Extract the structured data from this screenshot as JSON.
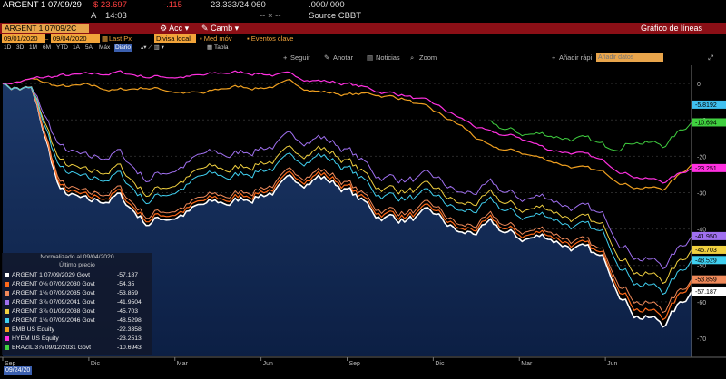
{
  "header": {
    "security": "ARGENT 1 07/09/29",
    "price": "$ 23.697",
    "change": "-.115",
    "bid_ask": "23.333/24.060",
    "volume": ".000/.000",
    "arrow": "A",
    "time": "14:03",
    "dash": "-- × --",
    "source": "Source CBBT"
  },
  "toolbar": {
    "security_box": "ARGENT 1 07/09/2C",
    "actions_label": "Acc",
    "actions_icon": "gear-icon",
    "camb_label": "Camb",
    "camb_icon": "pencil-icon",
    "chart_type": "Gráfico de líneas"
  },
  "controls": {
    "start_date": "09/01/2020",
    "end_date": "09/04/2020",
    "field": "Last Px",
    "currency": "Divisa local",
    "moving_avg": "Med móv",
    "key_events": "Eventos clave"
  },
  "periods": {
    "items": [
      "1D",
      "3D",
      "1M",
      "6M",
      "YTD",
      "1A",
      "5A",
      "Máx"
    ],
    "frequency": "Diario",
    "table": "Tabla"
  },
  "tools": {
    "follow": "Seguir",
    "annotate": "Anotar",
    "news": "Noticias",
    "zoom": "Zoom",
    "quick_add": "Añadir rápi",
    "add_data_placeholder": "Añadir datos"
  },
  "legend": {
    "title": "Normalizado al 09/04/2020",
    "subtitle": "Último precio",
    "entries": [
      {
        "name": "ARGENT 1 07/09/2029 Govt",
        "value": "-57.187",
        "color": "#ffffff"
      },
      {
        "name": "ARGENT 0⅛ 07/09/2030 Govt",
        "value": "-54.35",
        "color": "#ff6a1a"
      },
      {
        "name": "ARGENT 1⅛ 07/09/2035 Govt",
        "value": "-53.859",
        "color": "#f08a5a"
      },
      {
        "name": "ARGENT 3⅞ 07/09/2041 Govt",
        "value": "-41.9504",
        "color": "#a070f0"
      },
      {
        "name": "ARGENT 3⅞ 01/09/2038 Govt",
        "value": "-45.703",
        "color": "#f0d040"
      },
      {
        "name": "ARGENT 1⅛ 07/09/2046 Govt",
        "value": "-48.5298",
        "color": "#40d0f0"
      },
      {
        "name": "EMB US Equity",
        "value": "-22.3358",
        "color": "#f0a020"
      },
      {
        "name": "HYEM US Equity",
        "value": "-23.2513",
        "color": "#ff30e0"
      },
      {
        "name": "BRAZIL 3⅞ 09/12/2031 Govt",
        "value": "-10.6943",
        "color": "#40d040"
      }
    ]
  },
  "right_labels": [
    {
      "text": "-5.8192",
      "color": "#40c0f0"
    },
    {
      "text": "-10.694",
      "color": "#40d040"
    },
    {
      "text": "-23.251",
      "color": "#ff30e0"
    },
    {
      "text": "-41.950",
      "color": "#a070f0"
    },
    {
      "text": "-45.703",
      "color": "#f0d040"
    },
    {
      "text": "-48.529",
      "color": "#40d0f0"
    },
    {
      "text": "-53.859",
      "color": "#f08a5a"
    },
    {
      "text": "-57.187",
      "color": "#ffffff"
    }
  ],
  "date_box": "09/24/20",
  "chart_data": {
    "type": "line",
    "ylim": [
      -75,
      5
    ],
    "yticks": [
      0,
      -10,
      -20,
      -30,
      -40,
      -50,
      -60,
      -70
    ],
    "ytick_labels": [
      "0",
      "-10",
      "-20",
      "-30",
      "-40",
      "-50",
      "-60",
      "-70"
    ],
    "x_labels": [
      "Sep",
      "Dic",
      "Mar",
      "Jun",
      "Sep",
      "Dic",
      "Mar",
      "Jun"
    ],
    "year_labels": [
      "2020",
      "2021",
      "2022"
    ],
    "x_anchor_months": [
      0,
      3,
      6,
      9,
      12,
      15,
      18,
      21,
      24
    ],
    "series": [
      {
        "name": "ARGENT 1 07/09/2029 Govt",
        "color": "#ffffff",
        "width": 1.6,
        "values": [
          0,
          -2,
          -30,
          -34,
          -31,
          -38,
          -36,
          -34,
          -33,
          -30,
          -28,
          -25,
          -29,
          -36,
          -37,
          -37,
          -42,
          -40,
          -43,
          -42,
          -45,
          -50,
          -62,
          -66,
          -57.2
        ]
      },
      {
        "name": "ARGENT 0⅛ 07/09/2030 Govt",
        "color": "#ff6a1a",
        "width": 1.2,
        "values": [
          0,
          -2,
          -29,
          -33,
          -30,
          -37,
          -35,
          -33,
          -32,
          -29,
          -27,
          -24,
          -28,
          -35,
          -36,
          -36,
          -41,
          -39,
          -42,
          -41,
          -44,
          -49,
          -60,
          -64,
          -54.4
        ]
      },
      {
        "name": "ARGENT 1⅛ 07/09/2035 Govt",
        "color": "#f08a5a",
        "width": 1.0,
        "values": [
          0,
          -2,
          -28,
          -32,
          -29,
          -36,
          -34,
          -32,
          -31,
          -28,
          -26,
          -23,
          -27,
          -34,
          -35,
          -35,
          -40,
          -38,
          -41,
          -40,
          -43,
          -48,
          -58,
          -62,
          -53.9
        ]
      },
      {
        "name": "ARGENT 3⅞ 07/09/2041 Govt",
        "color": "#a070f0",
        "width": 1.0,
        "values": [
          0,
          -2,
          -18,
          -22,
          -19,
          -26,
          -23,
          -20,
          -20,
          -17,
          -16,
          -14,
          -18,
          -25,
          -26,
          -27,
          -31,
          -29,
          -32,
          -31,
          -34,
          -38,
          -46,
          -50,
          -42
        ]
      },
      {
        "name": "ARGENT 3⅞ 01/09/2038 Govt",
        "color": "#f0d040",
        "width": 1.0,
        "values": [
          0,
          -2,
          -22,
          -26,
          -23,
          -30,
          -27,
          -24,
          -24,
          -21,
          -20,
          -17,
          -21,
          -28,
          -29,
          -30,
          -34,
          -32,
          -35,
          -34,
          -37,
          -41,
          -50,
          -54,
          -45.7
        ]
      },
      {
        "name": "ARGENT 1⅛ 07/09/2046 Govt",
        "color": "#40d0f0",
        "width": 1.0,
        "values": [
          0,
          -2,
          -24,
          -28,
          -25,
          -32,
          -29,
          -26,
          -26,
          -23,
          -22,
          -19,
          -23,
          -30,
          -31,
          -32,
          -36,
          -34,
          -37,
          -36,
          -39,
          -43,
          -53,
          -57,
          -48.5
        ]
      },
      {
        "name": "EMB US Equity",
        "color": "#f0a020",
        "width": 1.2,
        "values": [
          0,
          1,
          -1,
          -1,
          -2,
          -1,
          -2,
          -3,
          -1,
          -1,
          0,
          -2,
          -3,
          -3,
          -4,
          -8,
          -12,
          -18,
          -19,
          -21,
          -23,
          -25,
          -28,
          -29,
          -22.3
        ]
      },
      {
        "name": "HYEM US Equity",
        "color": "#ff30e0",
        "width": 1.2,
        "values": [
          0,
          1,
          2,
          2,
          3,
          2,
          2,
          2,
          3,
          3,
          2,
          1,
          0,
          -2,
          -3,
          -6,
          -10,
          -14,
          -15,
          -18,
          -19,
          -22,
          -25,
          -27,
          -23.3
        ]
      },
      {
        "name": "BRAZIL 3⅞ 09/12/2031 Govt",
        "color": "#40d040",
        "width": 1.0,
        "values": [
          null,
          null,
          null,
          null,
          null,
          null,
          null,
          null,
          null,
          null,
          null,
          null,
          null,
          null,
          null,
          null,
          null,
          -12,
          -14,
          -14,
          -15,
          -18,
          -15,
          -17,
          -10.7
        ]
      }
    ]
  }
}
